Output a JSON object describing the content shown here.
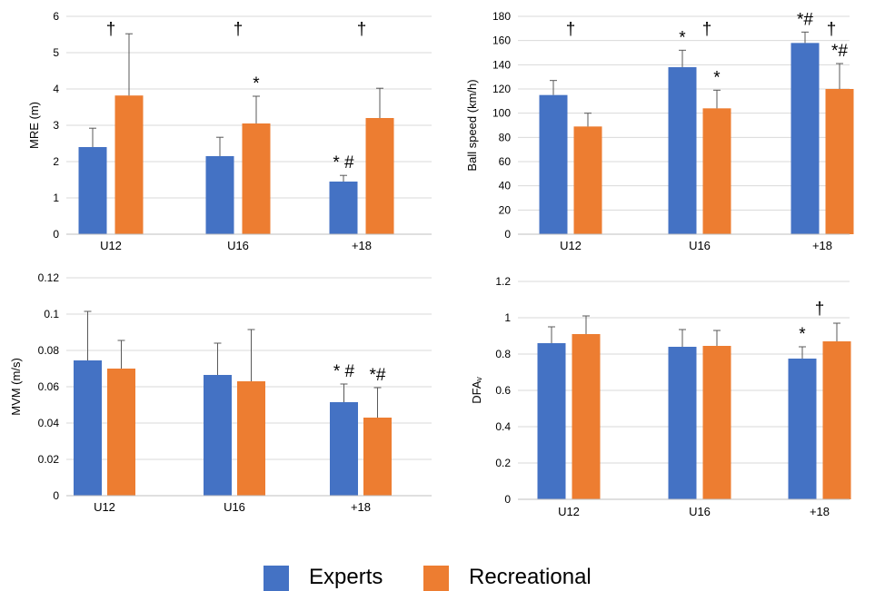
{
  "colors": {
    "experts": "#4472C4",
    "recreational": "#ED7D31",
    "axis": "#595959",
    "grid": "#D9D9D9"
  },
  "legend": [
    {
      "label": "Experts",
      "color": "#4472C4"
    },
    {
      "label": "Recreational",
      "color": "#ED7D31"
    }
  ],
  "chart_data": [
    {
      "type": "bar",
      "ylabel": "MRE (m)",
      "ylim": [
        0,
        6
      ],
      "yticks": [
        "0",
        "1",
        "2",
        "3",
        "4",
        "5",
        "6"
      ],
      "grid": true,
      "categories": [
        "U12",
        "U16",
        "+18"
      ],
      "series": [
        {
          "name": "Experts",
          "values": [
            2.4,
            2.15,
            1.45
          ],
          "errors": [
            0.52,
            0.52,
            0.17
          ]
        },
        {
          "name": "Recreational",
          "values": [
            3.82,
            3.05,
            3.2
          ],
          "errors": [
            1.7,
            0.75,
            0.82
          ]
        }
      ],
      "annotations": [
        {
          "category": 0,
          "series": "between",
          "text": "†"
        },
        {
          "category": 1,
          "series": "between",
          "text": "†"
        },
        {
          "category": 2,
          "series": "between",
          "text": "†"
        },
        {
          "category": 1,
          "series": 1,
          "text": "*"
        },
        {
          "category": 2,
          "series": 0,
          "text": "* #"
        }
      ]
    },
    {
      "type": "bar",
      "ylabel": "Ball speed (km/h)",
      "ylim": [
        0,
        180
      ],
      "yticks": [
        "0",
        "20",
        "40",
        "60",
        "80",
        "100",
        "120",
        "140",
        "160",
        "180"
      ],
      "grid": true,
      "categories": [
        "U12",
        "U16",
        "+18"
      ],
      "series": [
        {
          "name": "Experts",
          "values": [
            115,
            138,
            158
          ],
          "errors": [
            12,
            14,
            9
          ]
        },
        {
          "name": "Recreational",
          "values": [
            89,
            104,
            120
          ],
          "errors": [
            11,
            15,
            21
          ]
        }
      ],
      "annotations": [
        {
          "category": 0,
          "series": "between",
          "text": "†"
        },
        {
          "category": 1,
          "series": 0,
          "text": "*"
        },
        {
          "category": 1,
          "series": "between",
          "text": "†"
        },
        {
          "category": 1,
          "series": 1,
          "text": "*"
        },
        {
          "category": 2,
          "series": 0,
          "text": "*#"
        },
        {
          "category": 2,
          "series": "between",
          "text": "†"
        },
        {
          "category": 2,
          "series": 1,
          "text": "*#"
        }
      ]
    },
    {
      "type": "bar",
      "ylabel": "MVM (m/s)",
      "ylim": [
        0,
        0.12
      ],
      "yticks": [
        "0",
        "0.02",
        "0.04",
        "0.06",
        "0.08",
        "0.1",
        "0.12"
      ],
      "grid": true,
      "categories": [
        "U12",
        "U16",
        "+18"
      ],
      "series": [
        {
          "name": "Experts",
          "values": [
            0.0745,
            0.0665,
            0.0515
          ],
          "errors": [
            0.027,
            0.0175,
            0.01
          ]
        },
        {
          "name": "Recreational",
          "values": [
            0.07,
            0.063,
            0.043
          ],
          "errors": [
            0.0155,
            0.0285,
            0.0165
          ]
        }
      ],
      "annotations": [
        {
          "category": 2,
          "series": 0,
          "text": "* #"
        },
        {
          "category": 2,
          "series": 1,
          "text": "*#"
        }
      ]
    },
    {
      "type": "bar",
      "ylabel": "DFAᵥ",
      "ylim": [
        0,
        1.2
      ],
      "yticks": [
        "0",
        "0.2",
        "0.4",
        "0.6",
        "0.8",
        "1",
        "1.2"
      ],
      "grid": true,
      "categories": [
        "U12",
        "U16",
        "+18"
      ],
      "series": [
        {
          "name": "Experts",
          "values": [
            0.86,
            0.84,
            0.775
          ],
          "errors": [
            0.09,
            0.095,
            0.065
          ]
        },
        {
          "name": "Recreational",
          "values": [
            0.91,
            0.845,
            0.87
          ],
          "errors": [
            0.1,
            0.085,
            0.1
          ]
        }
      ],
      "annotations": [
        {
          "category": 2,
          "series": 0,
          "text": "*"
        },
        {
          "category": 2,
          "series": "between",
          "text": "†"
        }
      ]
    }
  ]
}
